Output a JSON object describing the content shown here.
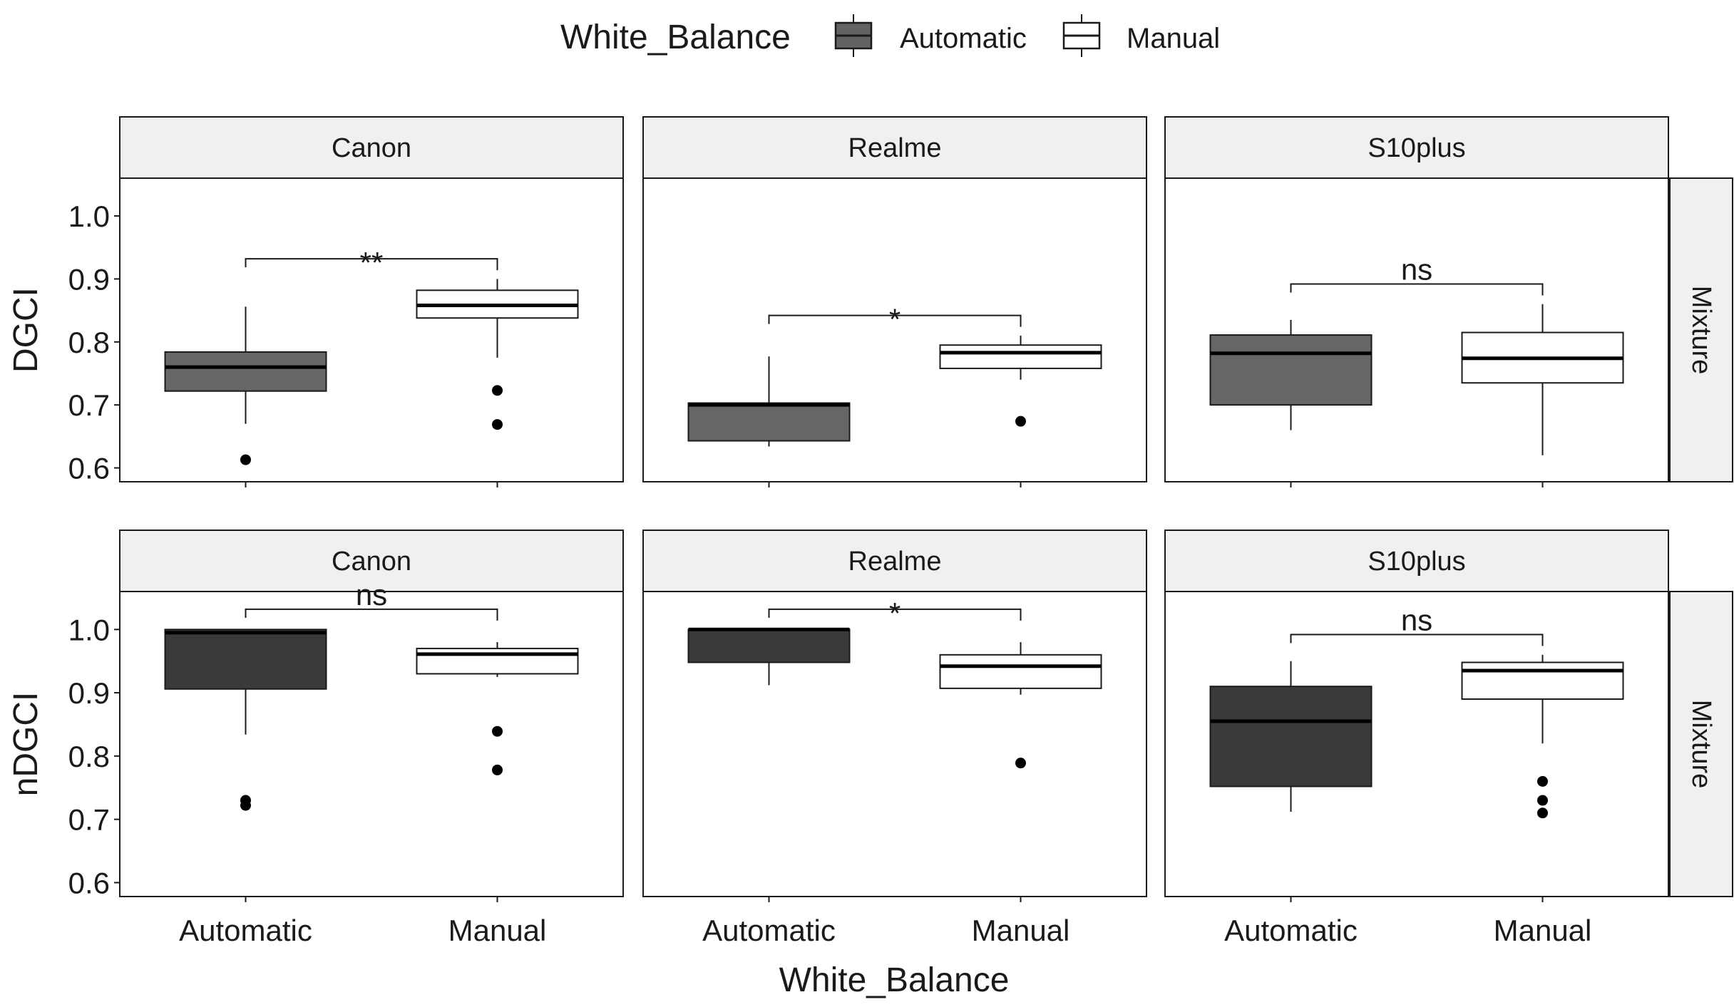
{
  "legend": {
    "title": "White_Balance",
    "items": [
      {
        "label": "Automatic",
        "fill": "#636363"
      },
      {
        "label": "Manual",
        "fill": "#ffffff"
      }
    ]
  },
  "x_axis_title": "White_Balance",
  "colors": {
    "strip_fill": "#f0f0f0",
    "outline": "#1a1a1a",
    "automatic_dgci": "#666666",
    "automatic_ndgci": "#3a3a3a",
    "manual": "#ffffff"
  },
  "chart_data": {
    "type": "box",
    "categories": [
      "Automatic",
      "Manual"
    ],
    "facet_columns": [
      "Canon",
      "Realme",
      "S10plus"
    ],
    "facet_row_label": "Mixture",
    "ylim": [
      0.58,
      1.0
    ],
    "y_ticks": [
      "0.6",
      "0.7",
      "0.8",
      "0.9",
      "1.0"
    ],
    "rows": [
      {
        "ylabel": "DGCI",
        "panels": [
          {
            "facet": "Canon",
            "significance": "**",
            "boxes": [
              {
                "group": "Automatic",
                "lower_whisker": 0.67,
                "q1": 0.722,
                "median": 0.76,
                "q3": 0.784,
                "upper_whisker": 0.856,
                "outliers": [
                  0.613
                ]
              },
              {
                "group": "Manual",
                "lower_whisker": 0.775,
                "q1": 0.838,
                "median": 0.858,
                "q3": 0.882,
                "upper_whisker": 0.9,
                "outliers": [
                  0.723,
                  0.669
                ]
              }
            ]
          },
          {
            "facet": "Realme",
            "significance": "*",
            "boxes": [
              {
                "group": "Automatic",
                "lower_whisker": 0.634,
                "q1": 0.643,
                "median": 0.7,
                "q3": 0.703,
                "upper_whisker": 0.777,
                "outliers": []
              },
              {
                "group": "Manual",
                "lower_whisker": 0.74,
                "q1": 0.758,
                "median": 0.783,
                "q3": 0.795,
                "upper_whisker": 0.81,
                "outliers": [
                  0.674
                ]
              }
            ]
          },
          {
            "facet": "S10plus",
            "significance": "ns",
            "boxes": [
              {
                "group": "Automatic",
                "lower_whisker": 0.66,
                "q1": 0.7,
                "median": 0.782,
                "q3": 0.811,
                "upper_whisker": 0.835,
                "outliers": []
              },
              {
                "group": "Manual",
                "lower_whisker": 0.62,
                "q1": 0.735,
                "median": 0.774,
                "q3": 0.815,
                "upper_whisker": 0.86,
                "outliers": []
              }
            ]
          }
        ]
      },
      {
        "ylabel": "nDGCI",
        "panels": [
          {
            "facet": "Canon",
            "significance": "ns",
            "boxes": [
              {
                "group": "Automatic",
                "lower_whisker": 0.834,
                "q1": 0.906,
                "median": 0.995,
                "q3": 1.0,
                "upper_whisker": 1.0,
                "outliers": [
                  0.73,
                  0.722
                ]
              },
              {
                "group": "Manual",
                "lower_whisker": 0.925,
                "q1": 0.93,
                "median": 0.961,
                "q3": 0.97,
                "upper_whisker": 0.98,
                "outliers": [
                  0.839,
                  0.778
                ]
              }
            ]
          },
          {
            "facet": "Realme",
            "significance": "*",
            "boxes": [
              {
                "group": "Automatic",
                "lower_whisker": 0.912,
                "q1": 0.948,
                "median": 1.0,
                "q3": 1.0,
                "upper_whisker": 1.0,
                "outliers": []
              },
              {
                "group": "Manual",
                "lower_whisker": 0.897,
                "q1": 0.907,
                "median": 0.942,
                "q3": 0.96,
                "upper_whisker": 0.98,
                "outliers": [
                  0.789
                ]
              }
            ]
          },
          {
            "facet": "S10plus",
            "significance": "ns",
            "boxes": [
              {
                "group": "Automatic",
                "lower_whisker": 0.712,
                "q1": 0.752,
                "median": 0.855,
                "q3": 0.91,
                "upper_whisker": 0.95,
                "outliers": []
              },
              {
                "group": "Manual",
                "lower_whisker": 0.82,
                "q1": 0.89,
                "median": 0.935,
                "q3": 0.948,
                "upper_whisker": 0.96,
                "outliers": [
                  0.76,
                  0.73,
                  0.71
                ]
              }
            ]
          }
        ]
      }
    ]
  }
}
